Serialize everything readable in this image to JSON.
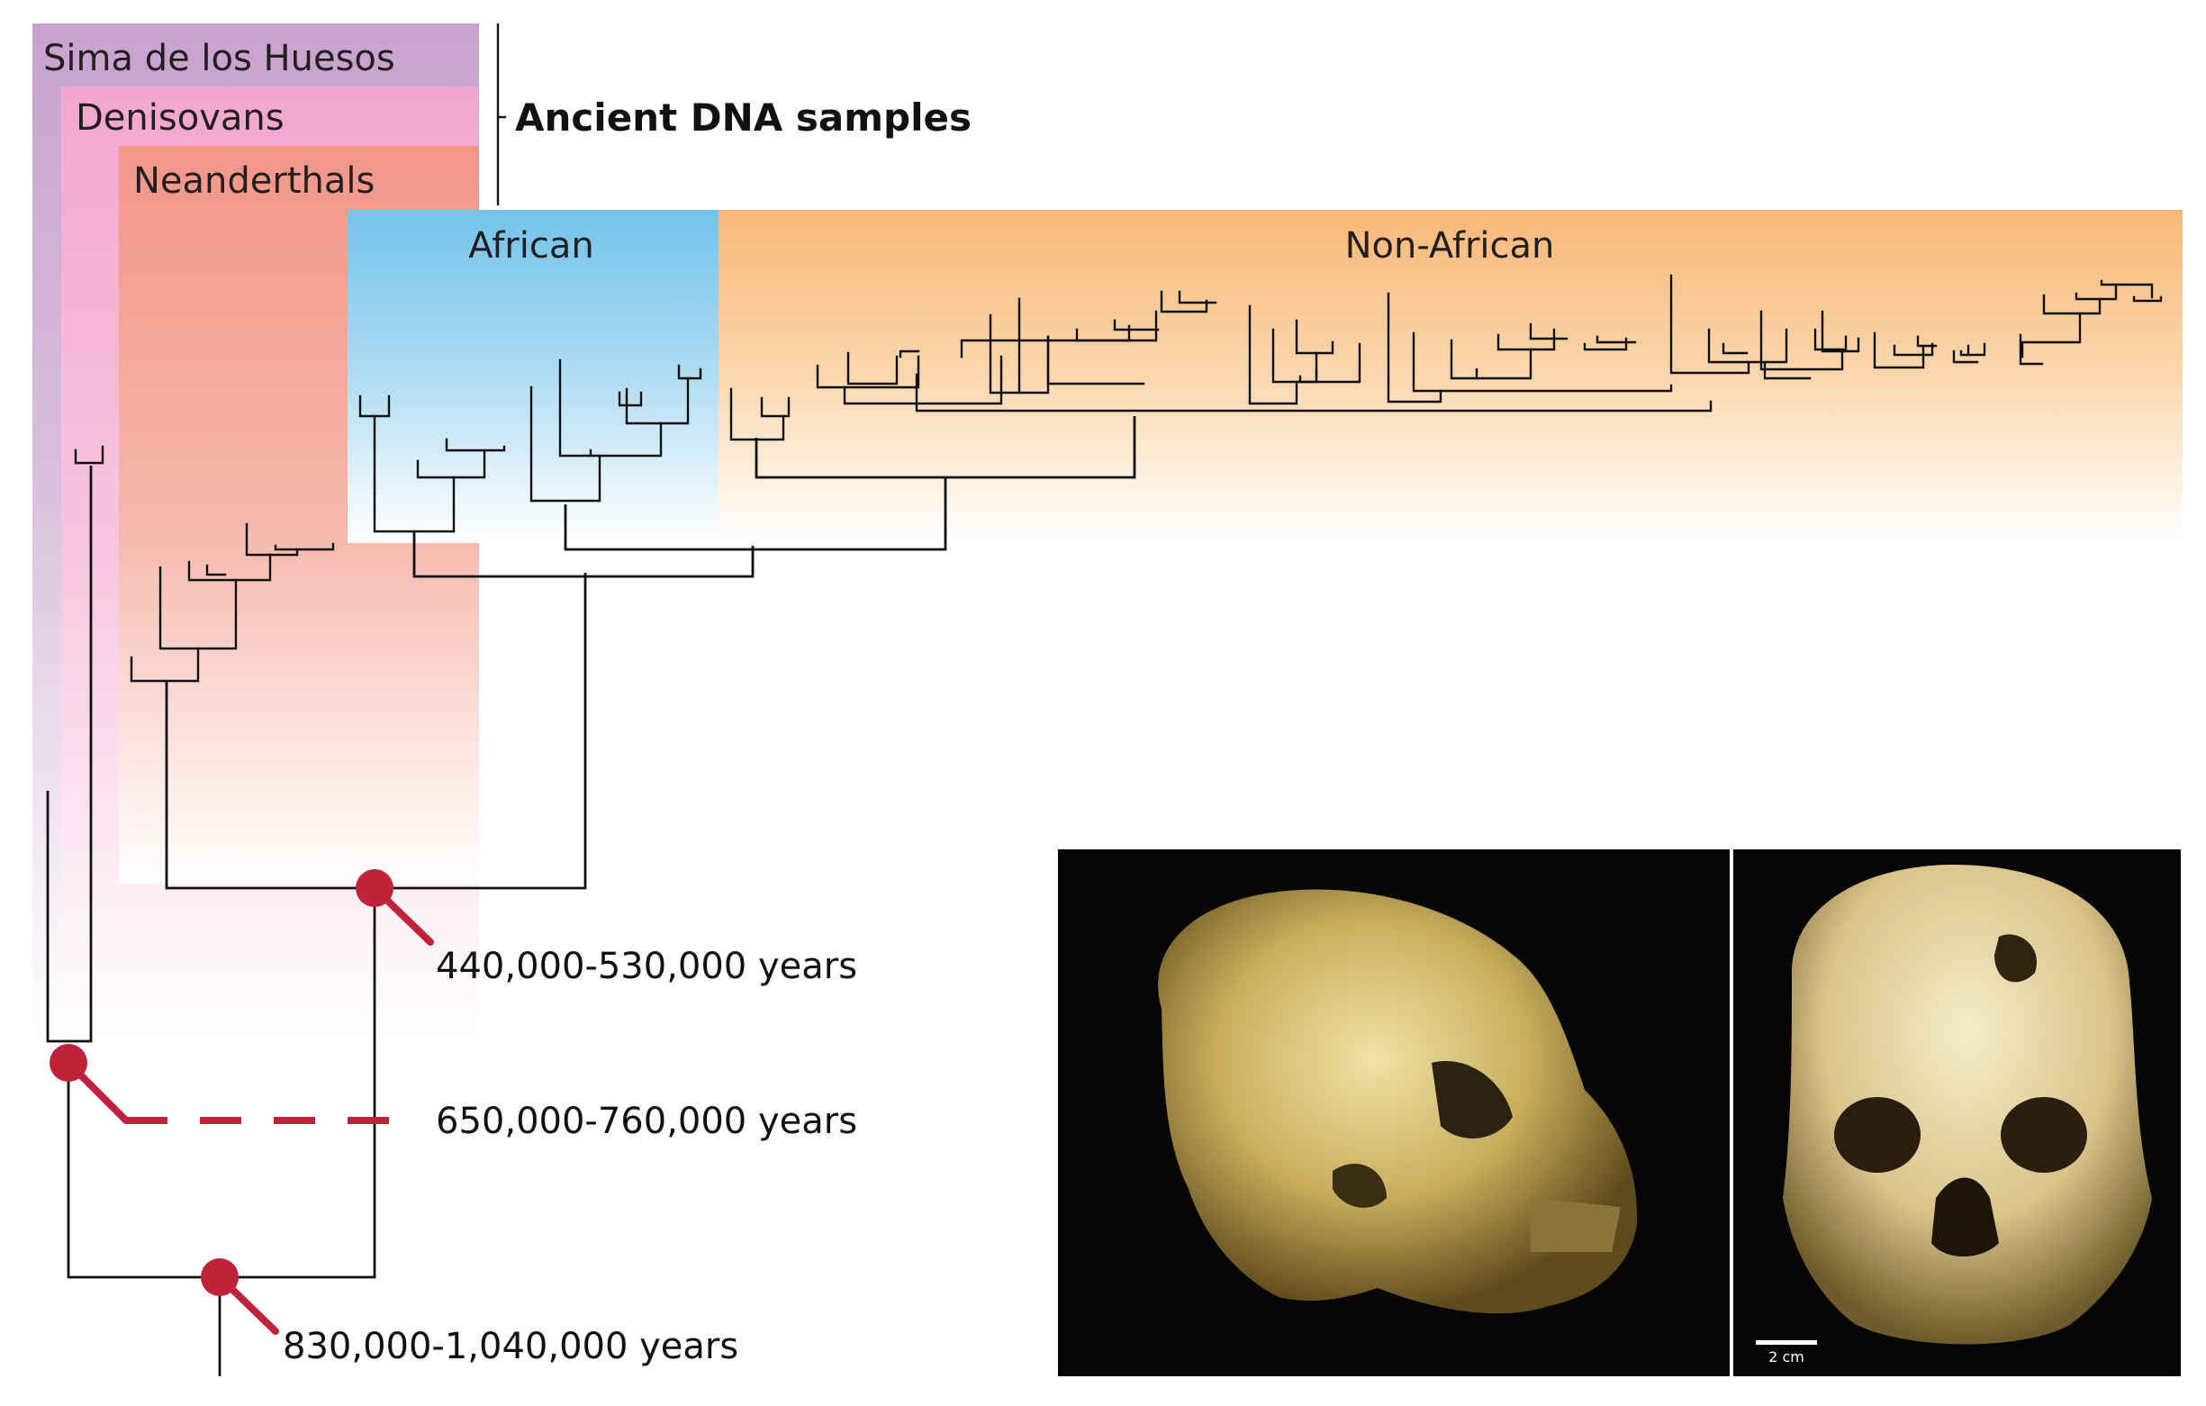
{
  "groups": {
    "sima": "Sima de los Huesos",
    "denisovans": "Denisovans",
    "neanderthals": "Neanderthals",
    "african": "African",
    "non_african": "Non-African"
  },
  "ancient_dna_label": "Ancient DNA samples",
  "divergence_dates": {
    "modern_vs_neanderthal": "440,000-530,000 years",
    "denisovan_split": "650,000-760,000 years",
    "root_split": "830,000-1,040,000 years"
  },
  "colors": {
    "sima": "#c9a6cf",
    "denisovans": "#f3a8cf",
    "neanderthals": "#f19a8f",
    "african": "#7cc6ea",
    "non_african": "#f8bd7c",
    "marker": "#c0223a"
  },
  "photos": {
    "left": "skull-side-view",
    "right": "skull-front-view",
    "scale_bar": "2 cm"
  }
}
